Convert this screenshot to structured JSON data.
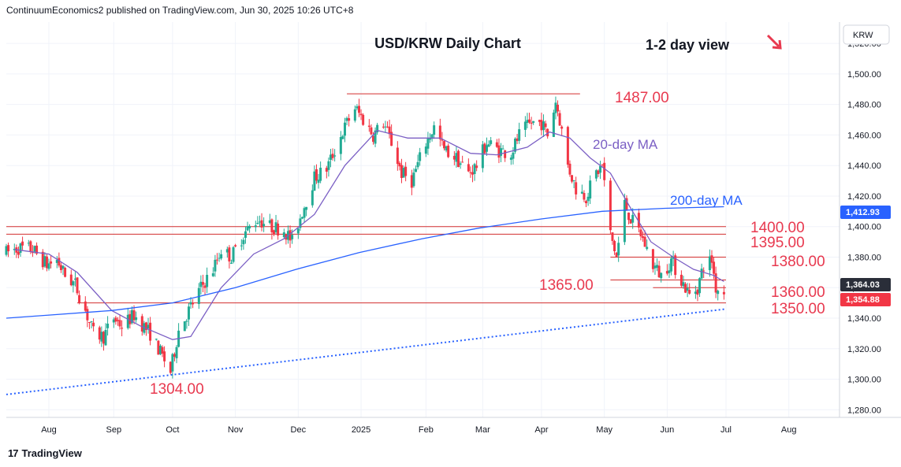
{
  "header": {
    "publisher": "ContinuumEconomics2 published on TradingView.com, Jun 30, 2025 10:26 UTC+8"
  },
  "footer": {
    "brand": "TradingView",
    "logo_icon": "tradingview-logo-icon"
  },
  "colors": {
    "up": "#22ab94",
    "down": "#f23645",
    "level": "#d32f2f",
    "label": "#e8394f",
    "ma20": "#7b5fc4",
    "ma200": "#2962ff",
    "trend": "#2962ff",
    "grid": "#f0f3fa"
  },
  "chart_data": {
    "type": "candlestick",
    "title": "USD/KRW Daily Chart",
    "subtitle": "1-2 day view",
    "direction_icon": "arrow-down-right-icon",
    "currency": "KRW",
    "ylim": [
      1275,
      1534
    ],
    "y_ticks": [
      "1,520.00",
      "1,500.00",
      "1,480.00",
      "1,460.00",
      "1,440.00",
      "1,420.00",
      "1,400.00",
      "1,380.00",
      "1,360.00",
      "1,340.00",
      "1,320.00",
      "1,300.00",
      "1,280.00"
    ],
    "y_tick_values": [
      1520,
      1500,
      1480,
      1460,
      1440,
      1420,
      1400,
      1380,
      1360,
      1340,
      1320,
      1300,
      1280
    ],
    "x_start": "2024-07-11",
    "x_end": "2025-08-26",
    "x_ticks": [
      {
        "date": "2024-08-01",
        "label": "Aug"
      },
      {
        "date": "2024-09-02",
        "label": "Sep"
      },
      {
        "date": "2024-10-01",
        "label": "Oct"
      },
      {
        "date": "2024-11-01",
        "label": "Nov"
      },
      {
        "date": "2024-12-02",
        "label": "Dec"
      },
      {
        "date": "2025-01-02",
        "label": "2025"
      },
      {
        "date": "2025-02-03",
        "label": "Feb"
      },
      {
        "date": "2025-03-03",
        "label": "Mar"
      },
      {
        "date": "2025-04-01",
        "label": "Apr"
      },
      {
        "date": "2025-05-02",
        "label": "May"
      },
      {
        "date": "2025-06-02",
        "label": "Jun"
      },
      {
        "date": "2025-07-01",
        "label": "Jul"
      },
      {
        "date": "2025-08-01",
        "label": "Aug"
      }
    ],
    "path_points": [
      [
        "2024-07-11",
        1383
      ],
      [
        "2024-07-17",
        1386
      ],
      [
        "2024-07-24",
        1385
      ],
      [
        "2024-07-31",
        1375
      ],
      [
        "2024-08-05",
        1378
      ],
      [
        "2024-08-09",
        1368
      ],
      [
        "2024-08-14",
        1362
      ],
      [
        "2024-08-19",
        1345
      ],
      [
        "2024-08-23",
        1330
      ],
      [
        "2024-08-28",
        1328
      ],
      [
        "2024-09-02",
        1340
      ],
      [
        "2024-09-06",
        1335
      ],
      [
        "2024-09-12",
        1342
      ],
      [
        "2024-09-20",
        1330
      ],
      [
        "2024-09-26",
        1315
      ],
      [
        "2024-09-30",
        1305
      ],
      [
        "2024-10-04",
        1332
      ],
      [
        "2024-10-09",
        1345
      ],
      [
        "2024-10-15",
        1360
      ],
      [
        "2024-10-21",
        1372
      ],
      [
        "2024-10-25",
        1385
      ],
      [
        "2024-10-30",
        1380
      ],
      [
        "2024-11-05",
        1395
      ],
      [
        "2024-11-12",
        1405
      ],
      [
        "2024-11-18",
        1400
      ],
      [
        "2024-11-25",
        1398
      ],
      [
        "2024-11-29",
        1390
      ],
      [
        "2024-12-04",
        1410
      ],
      [
        "2024-12-10",
        1432
      ],
      [
        "2024-12-16",
        1438
      ],
      [
        "2024-12-20",
        1450
      ],
      [
        "2024-12-26",
        1468
      ],
      [
        "2024-12-30",
        1478
      ],
      [
        "2025-01-03",
        1470
      ],
      [
        "2025-01-08",
        1460
      ],
      [
        "2025-01-13",
        1468
      ],
      [
        "2025-01-17",
        1455
      ],
      [
        "2025-01-22",
        1435
      ],
      [
        "2025-01-27",
        1430
      ],
      [
        "2025-02-03",
        1455
      ],
      [
        "2025-02-07",
        1465
      ],
      [
        "2025-02-12",
        1450
      ],
      [
        "2025-02-18",
        1445
      ],
      [
        "2025-02-24",
        1435
      ],
      [
        "2025-02-28",
        1440
      ],
      [
        "2025-03-05",
        1455
      ],
      [
        "2025-03-11",
        1450
      ],
      [
        "2025-03-17",
        1448
      ],
      [
        "2025-03-21",
        1460
      ],
      [
        "2025-03-27",
        1468
      ],
      [
        "2025-04-01",
        1468
      ],
      [
        "2025-04-04",
        1460
      ],
      [
        "2025-04-08",
        1482
      ],
      [
        "2025-04-10",
        1470
      ],
      [
        "2025-04-14",
        1440
      ],
      [
        "2025-04-18",
        1425
      ],
      [
        "2025-04-23",
        1420
      ],
      [
        "2025-04-28",
        1435
      ],
      [
        "2025-05-01",
        1440
      ],
      [
        "2025-05-05",
        1395
      ],
      [
        "2025-05-08",
        1380
      ],
      [
        "2025-05-12",
        1415
      ],
      [
        "2025-05-15",
        1405
      ],
      [
        "2025-05-20",
        1395
      ],
      [
        "2025-05-26",
        1375
      ],
      [
        "2025-05-30",
        1368
      ],
      [
        "2025-06-04",
        1378
      ],
      [
        "2025-06-09",
        1365
      ],
      [
        "2025-06-13",
        1355
      ],
      [
        "2025-06-17",
        1360
      ],
      [
        "2025-06-20",
        1375
      ],
      [
        "2025-06-24",
        1378
      ],
      [
        "2025-06-26",
        1360
      ],
      [
        "2025-06-30",
        1357
      ]
    ],
    "series": [
      {
        "name": "20-day MA",
        "points": [
          [
            "2024-07-15",
            1385
          ],
          [
            "2024-08-01",
            1382
          ],
          [
            "2024-08-15",
            1370
          ],
          [
            "2024-09-01",
            1345
          ],
          [
            "2024-09-15",
            1335
          ],
          [
            "2024-10-01",
            1326
          ],
          [
            "2024-10-10",
            1328
          ],
          [
            "2024-10-25",
            1360
          ],
          [
            "2024-11-10",
            1382
          ],
          [
            "2024-11-25",
            1392
          ],
          [
            "2024-12-10",
            1408
          ],
          [
            "2024-12-25",
            1440
          ],
          [
            "2025-01-10",
            1463
          ],
          [
            "2025-01-25",
            1458
          ],
          [
            "2025-02-10",
            1458
          ],
          [
            "2025-02-25",
            1448
          ],
          [
            "2025-03-10",
            1447
          ],
          [
            "2025-03-25",
            1452
          ],
          [
            "2025-04-05",
            1462
          ],
          [
            "2025-04-15",
            1458
          ],
          [
            "2025-04-25",
            1445
          ],
          [
            "2025-05-05",
            1435
          ],
          [
            "2025-05-15",
            1412
          ],
          [
            "2025-05-25",
            1390
          ],
          [
            "2025-06-05",
            1380
          ],
          [
            "2025-06-15",
            1372
          ],
          [
            "2025-06-25",
            1368
          ],
          [
            "2025-06-30",
            1364
          ]
        ]
      },
      {
        "name": "200-day MA",
        "points": [
          [
            "2024-07-11",
            1340
          ],
          [
            "2024-08-01",
            1342
          ],
          [
            "2024-09-01",
            1345
          ],
          [
            "2024-10-01",
            1350
          ],
          [
            "2024-11-01",
            1360
          ],
          [
            "2024-12-01",
            1372
          ],
          [
            "2025-01-01",
            1383
          ],
          [
            "2025-02-01",
            1392
          ],
          [
            "2025-03-01",
            1399
          ],
          [
            "2025-04-01",
            1405
          ],
          [
            "2025-05-01",
            1410
          ],
          [
            "2025-06-01",
            1412
          ],
          [
            "2025-06-30",
            1413
          ]
        ]
      }
    ],
    "trendline": [
      [
        "2024-07-11",
        1290
      ],
      [
        "2025-07-01",
        1346
      ]
    ],
    "levels": [
      {
        "price": 1487,
        "label": "1487.00",
        "from": "2024-12-26",
        "to": "2025-04-20"
      },
      {
        "price": 1400,
        "label": "1400.00",
        "from": "2024-07-11",
        "to": "2025-07-01"
      },
      {
        "price": 1395,
        "label": "1395.00",
        "from": "2024-07-11",
        "to": "2025-07-01"
      },
      {
        "price": 1380,
        "label": "1380.00",
        "from": "2025-05-05",
        "to": "2025-07-01"
      },
      {
        "price": 1365,
        "label": "1365.00",
        "from": "2025-05-05",
        "to": "2025-07-01"
      },
      {
        "price": 1360,
        "label": "1360.00",
        "from": "2025-05-26",
        "to": "2025-07-01"
      },
      {
        "price": 1350,
        "label": "1350.00",
        "from": "2024-08-15",
        "to": "2025-07-01"
      }
    ],
    "low_label": {
      "date": "2024-09-30",
      "price": 1304,
      "label": "1304.00"
    },
    "price_badges": [
      {
        "label": "1,412.93",
        "price": 1412.93,
        "color": "#2962ff"
      },
      {
        "label": "1,364.03",
        "price": 1364.03,
        "color": "#2a2e39"
      },
      {
        "label": "1,354.88",
        "price": 1354.88,
        "color": "#f23645"
      }
    ]
  }
}
